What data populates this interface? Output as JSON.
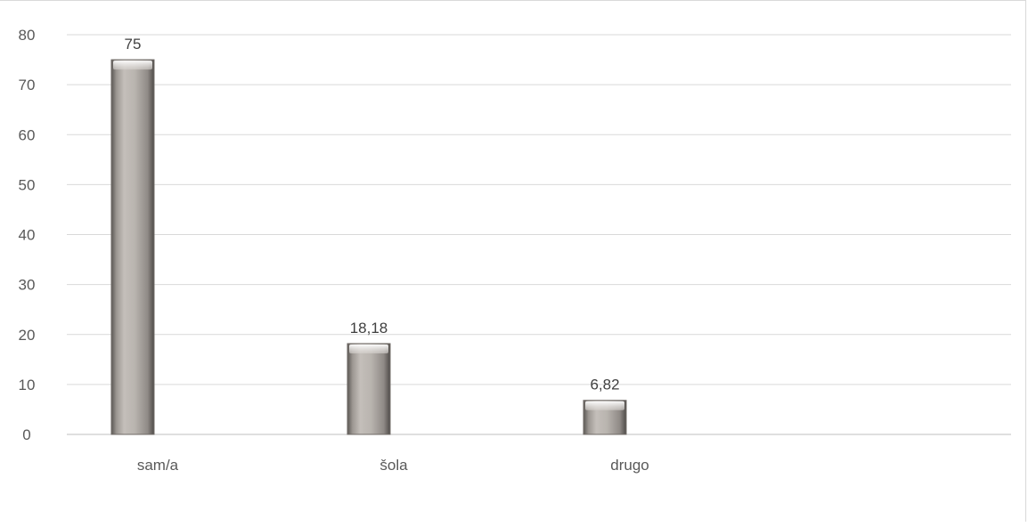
{
  "chart_data": {
    "type": "bar",
    "title": "",
    "xlabel": "",
    "ylabel": "",
    "categories": [
      "sam/a",
      "šola",
      "drugo"
    ],
    "values": [
      75,
      18.18,
      6.82
    ],
    "data_labels": [
      "75",
      "18,18",
      "6,82"
    ],
    "ylim": [
      0,
      80
    ],
    "yticks": [
      0,
      10,
      20,
      30,
      40,
      50,
      60,
      70,
      80
    ],
    "ytick_labels": [
      "0",
      "10",
      "20",
      "30",
      "40",
      "50",
      "60",
      "70",
      "80"
    ],
    "grid": true,
    "legend": "none",
    "colors": {
      "bar_fill": "#bdb8b3",
      "bar_edge": "#6f6a66",
      "gridline": "#d9d9d9",
      "text": "#595959"
    }
  }
}
